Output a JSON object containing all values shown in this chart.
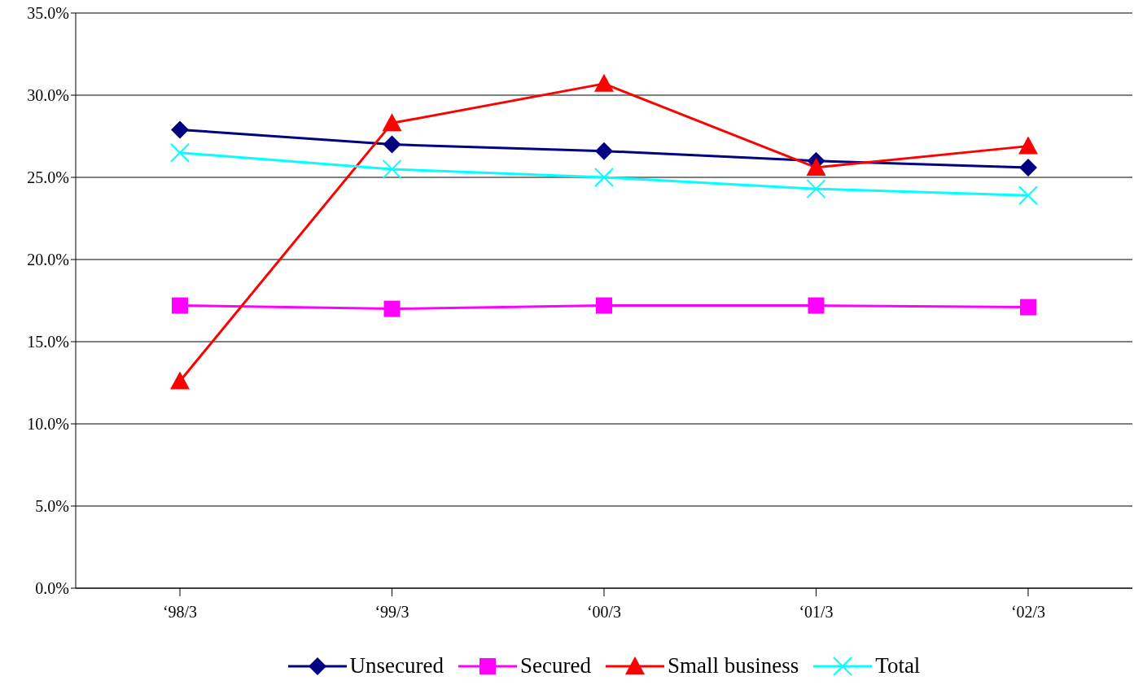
{
  "chart_data": {
    "type": "line",
    "categories": [
      "‘98/3",
      "‘99/3",
      "‘00/3",
      "‘01/3",
      "‘02/3"
    ],
    "series": [
      {
        "name": "Unsecured",
        "color": "#000080",
        "marker": "diamond",
        "values": [
          27.9,
          27.0,
          26.6,
          26.0,
          25.6
        ]
      },
      {
        "name": "Secured",
        "color": "#ff00ff",
        "marker": "square",
        "values": [
          17.2,
          17.0,
          17.2,
          17.2,
          17.1
        ]
      },
      {
        "name": "Small business",
        "color": "#ff0000",
        "marker": "triangle",
        "values": [
          12.6,
          28.3,
          30.7,
          25.6,
          26.9
        ]
      },
      {
        "name": "Total",
        "color": "#00ffff",
        "marker": "cross",
        "values": [
          26.5,
          25.5,
          25.0,
          24.3,
          23.9
        ]
      }
    ],
    "ylim": [
      0,
      35
    ],
    "yticks": [
      {
        "value": 0,
        "label": "0.0%"
      },
      {
        "value": 5,
        "label": "5.0%"
      },
      {
        "value": 10,
        "label": "10.0%"
      },
      {
        "value": 15,
        "label": "15.0%"
      },
      {
        "value": 20,
        "label": "20.0%"
      },
      {
        "value": 25,
        "label": "25.0%"
      },
      {
        "value": 30,
        "label": "30.0%"
      },
      {
        "value": 35,
        "label": "35.0%"
      }
    ],
    "grid": "y",
    "legend": "bottom"
  }
}
